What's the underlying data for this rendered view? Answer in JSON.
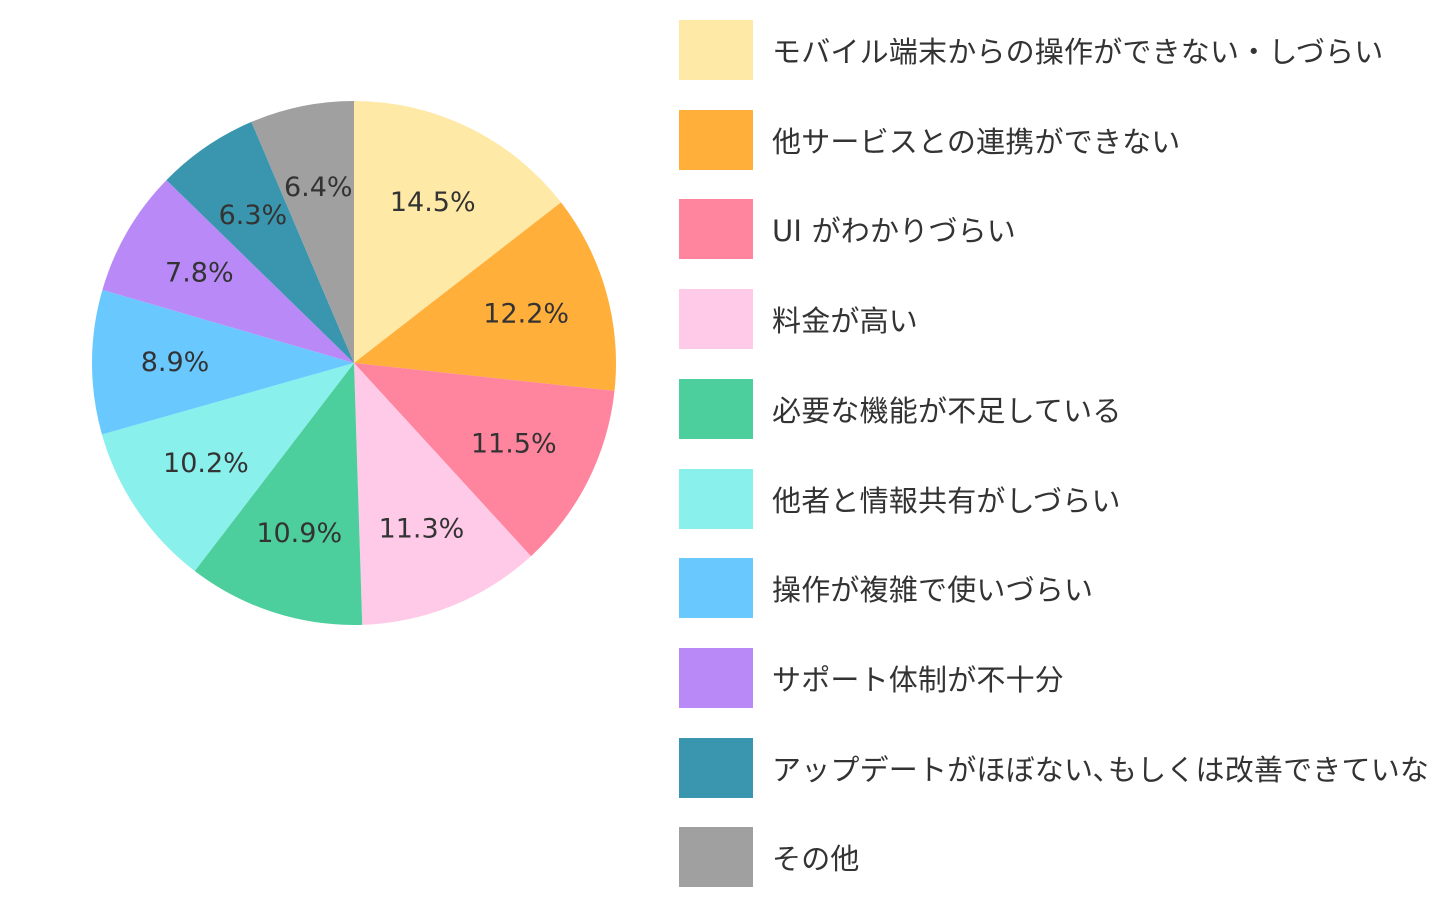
{
  "chart_data": {
    "type": "pie",
    "title": "",
    "start_angle_deg": 0,
    "direction": "clockwise",
    "slices": [
      {
        "label": "モバイル端末からの操作ができない・しづらい",
        "value": 14.5,
        "value_label": "14.5%",
        "color": "#FFE9A6"
      },
      {
        "label": "他サービスとの連携ができない",
        "value": 12.2,
        "value_label": "12.2%",
        "color": "#FFAF3A"
      },
      {
        "label": "UI がわかりづらい",
        "value": 11.5,
        "value_label": "11.5%",
        "color": "#FF859F"
      },
      {
        "label": "料金が高い",
        "value": 11.3,
        "value_label": "11.3%",
        "color": "#FFCAE8"
      },
      {
        "label": "必要な機能が不足している",
        "value": 10.9,
        "value_label": "10.9%",
        "color": "#4DCE9D"
      },
      {
        "label": "他者と情報共有がしづらい",
        "value": 10.2,
        "value_label": "10.2%",
        "color": "#8AF0EC"
      },
      {
        "label": "操作が複雑で使いづらい",
        "value": 8.9,
        "value_label": "8.9%",
        "color": "#69C9FF"
      },
      {
        "label": "サポート体制が不十分",
        "value": 7.8,
        "value_label": "7.8%",
        "color": "#B98AF7"
      },
      {
        "label": "アップデートがほぼない､もしくは改善できていない",
        "value": 6.3,
        "value_label": "6.3%",
        "color": "#3A96AE"
      },
      {
        "label": "その他",
        "value": 6.4,
        "value_label": "6.4%",
        "color": "#A0A0A0"
      }
    ],
    "legend_position": "right"
  }
}
